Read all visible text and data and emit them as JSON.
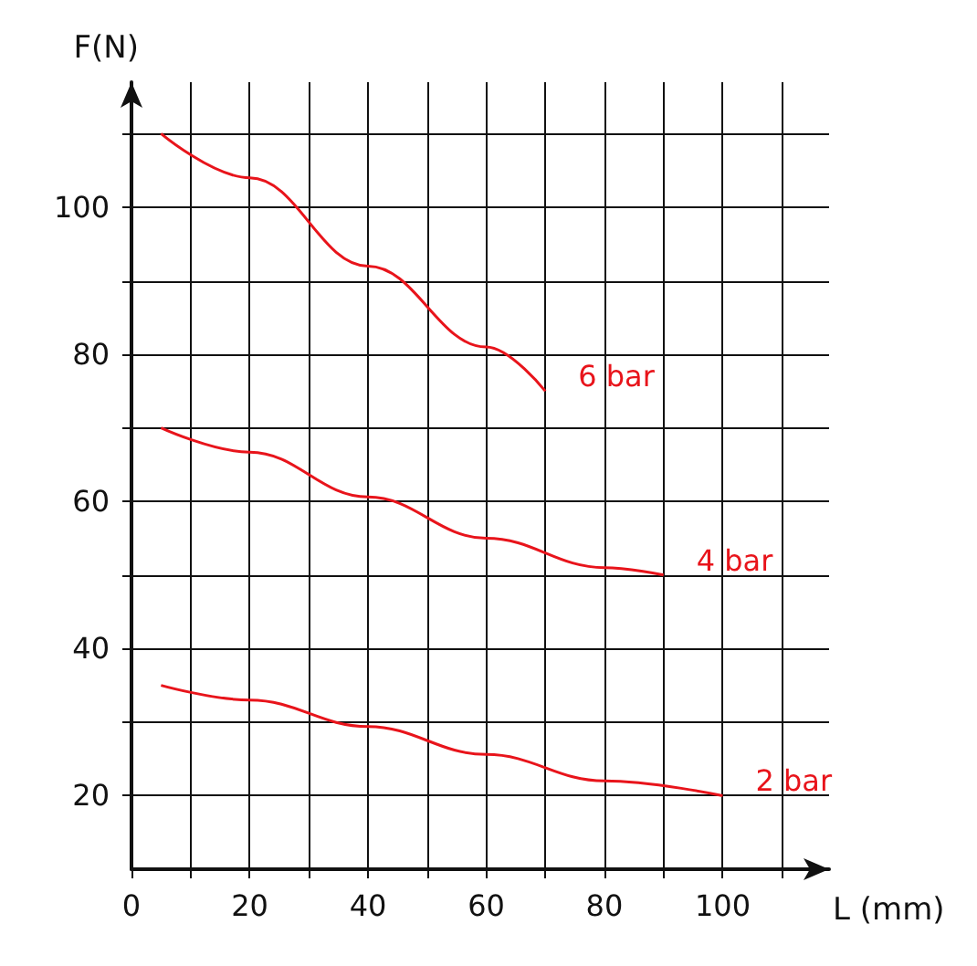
{
  "chart_data": {
    "type": "line",
    "xlabel": "L (mm)",
    "ylabel": "F(N)",
    "xlim": [
      0,
      118
    ],
    "ylim": [
      10,
      117
    ],
    "xticks": [
      0,
      {
        "value": 10,
        "label": null
      },
      20,
      {
        "value": 30,
        "label": null
      },
      40,
      {
        "value": 50,
        "label": null
      },
      60,
      {
        "value": 70,
        "label": null
      },
      80,
      {
        "value": 90,
        "label": null
      },
      100,
      {
        "value": 110,
        "label": null
      }
    ],
    "yticks": [
      {
        "value": 20,
        "label": "20"
      },
      {
        "value": 30,
        "label": null
      },
      40,
      {
        "value": 50,
        "label": null
      },
      60,
      {
        "value": 70,
        "label": null
      },
      80,
      {
        "value": 90,
        "label": null
      },
      100,
      {
        "value": 110,
        "label": null
      }
    ],
    "grid": true,
    "legend": false,
    "marker": "none",
    "line_style": "solid",
    "series": [
      {
        "name": "6 bar",
        "color": "#e8141b",
        "x": [
          5,
          20,
          40,
          60,
          70
        ],
        "values": [
          110,
          104,
          92,
          81,
          75
        ]
      },
      {
        "name": "4 bar",
        "color": "#e8141b",
        "x": [
          5,
          20,
          40,
          60,
          80,
          90
        ],
        "values": [
          70,
          66.7,
          60.6,
          55,
          51,
          50
        ]
      },
      {
        "name": "2 bar",
        "color": "#e8141b",
        "x": [
          5,
          20,
          40,
          60,
          80,
          100
        ],
        "values": [
          35,
          33,
          29.4,
          25.6,
          22,
          20
        ]
      }
    ]
  }
}
